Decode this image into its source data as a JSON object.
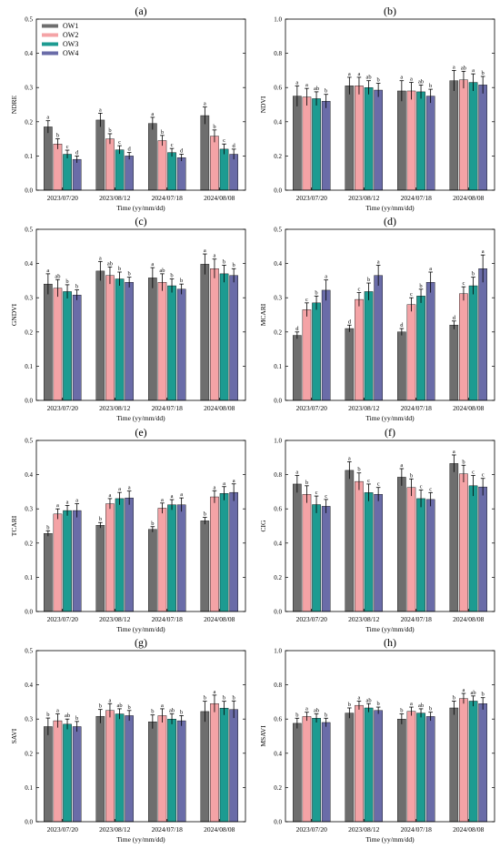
{
  "chart_data": [
    {
      "type": "bar",
      "panel_label": "(a)",
      "ylabel": "NDRE",
      "xlabel": "Time (yy/mm/dd)",
      "categories": [
        "2023/07/20",
        "2023/08/12",
        "2024/07/18",
        "2024/08/08"
      ],
      "ylim": [
        0,
        0.5
      ],
      "yticks": [
        0.0,
        0.1,
        0.2,
        0.3,
        0.4,
        0.5
      ],
      "legend": {
        "position": "top-left"
      },
      "series": [
        {
          "name": "OW1",
          "values": [
            0.185,
            0.205,
            0.195,
            0.218
          ],
          "errors": [
            0.018,
            0.02,
            0.018,
            0.025
          ],
          "labels": [
            "a",
            "a",
            "a",
            "a"
          ]
        },
        {
          "name": "OW2",
          "values": [
            0.135,
            0.15,
            0.145,
            0.158
          ],
          "errors": [
            0.015,
            0.015,
            0.015,
            0.018
          ],
          "labels": [
            "b",
            "b",
            "b",
            "b"
          ]
        },
        {
          "name": "OW3",
          "values": [
            0.105,
            0.118,
            0.11,
            0.12
          ],
          "errors": [
            0.012,
            0.012,
            0.012,
            0.015
          ],
          "labels": [
            "c",
            "c",
            "c",
            "c"
          ]
        },
        {
          "name": "OW4",
          "values": [
            0.09,
            0.1,
            0.095,
            0.105
          ],
          "errors": [
            0.01,
            0.01,
            0.01,
            0.015
          ],
          "labels": [
            "d",
            "d",
            "d",
            "d"
          ]
        }
      ]
    },
    {
      "type": "bar",
      "panel_label": "(b)",
      "ylabel": "NDVI",
      "xlabel": "Time (yy/mm/dd)",
      "categories": [
        "2023/07/20",
        "2023/08/12",
        "2024/07/18",
        "2024/08/08"
      ],
      "ylim": [
        0,
        1.0
      ],
      "yticks": [
        0.0,
        0.2,
        0.4,
        0.6,
        0.8,
        1.0
      ],
      "series": [
        {
          "name": "OW1",
          "values": [
            0.55,
            0.61,
            0.58,
            0.64
          ],
          "errors": [
            0.06,
            0.05,
            0.06,
            0.06
          ],
          "labels": [
            "a",
            "a",
            "a",
            "a"
          ]
        },
        {
          "name": "OW2",
          "values": [
            0.545,
            0.61,
            0.58,
            0.645
          ],
          "errors": [
            0.05,
            0.05,
            0.05,
            0.05
          ],
          "labels": [
            "a",
            "a",
            "a",
            "ab"
          ]
        },
        {
          "name": "OW3",
          "values": [
            0.535,
            0.6,
            0.575,
            0.63
          ],
          "errors": [
            0.04,
            0.04,
            0.04,
            0.05
          ],
          "labels": [
            "ab",
            "ab",
            "ab",
            "a"
          ]
        },
        {
          "name": "OW4",
          "values": [
            0.52,
            0.585,
            0.55,
            0.615
          ],
          "errors": [
            0.04,
            0.04,
            0.04,
            0.05
          ],
          "labels": [
            "b",
            "b",
            "b",
            "b"
          ]
        }
      ]
    },
    {
      "type": "bar",
      "panel_label": "(c)",
      "ylabel": "GNDVI",
      "xlabel": "Time (yy/mm/dd)",
      "categories": [
        "2023/07/20",
        "2023/08/12",
        "2024/07/18",
        "2024/08/08"
      ],
      "ylim": [
        0,
        0.5
      ],
      "yticks": [
        0.0,
        0.1,
        0.2,
        0.3,
        0.4,
        0.5
      ],
      "series": [
        {
          "name": "OW1",
          "values": [
            0.34,
            0.378,
            0.358,
            0.398
          ],
          "errors": [
            0.03,
            0.028,
            0.03,
            0.03
          ],
          "labels": [
            "a",
            "a",
            "a",
            "a"
          ]
        },
        {
          "name": "OW2",
          "values": [
            0.328,
            0.365,
            0.345,
            0.385
          ],
          "errors": [
            0.025,
            0.025,
            0.025,
            0.028
          ],
          "labels": [
            "ab",
            "ab",
            "ab",
            "a"
          ]
        },
        {
          "name": "OW3",
          "values": [
            0.318,
            0.355,
            0.335,
            0.37
          ],
          "errors": [
            0.02,
            0.02,
            0.02,
            0.025
          ],
          "labels": [
            "b",
            "b",
            "b",
            "b"
          ]
        },
        {
          "name": "OW4",
          "values": [
            0.308,
            0.345,
            0.325,
            0.365
          ],
          "errors": [
            0.015,
            0.015,
            0.015,
            0.02
          ],
          "labels": [
            "b",
            "b",
            "b",
            "b"
          ]
        }
      ]
    },
    {
      "type": "bar",
      "panel_label": "(d)",
      "ylabel": "MCARI",
      "xlabel": "Time (yy/mm/dd)",
      "categories": [
        "2023/07/20",
        "2023/08/12",
        "2024/07/18",
        "2024/08/08"
      ],
      "ylim": [
        0,
        0.5
      ],
      "yticks": [
        0.0,
        0.1,
        0.2,
        0.3,
        0.4,
        0.5
      ],
      "series": [
        {
          "name": "OW1",
          "values": [
            0.19,
            0.21,
            0.2,
            0.22
          ],
          "errors": [
            0.01,
            0.01,
            0.01,
            0.012
          ],
          "labels": [
            "d",
            "d",
            "d",
            "d"
          ]
        },
        {
          "name": "OW2",
          "values": [
            0.265,
            0.295,
            0.28,
            0.312
          ],
          "errors": [
            0.02,
            0.02,
            0.02,
            0.02
          ],
          "labels": [
            "c",
            "c",
            "c",
            "c"
          ]
        },
        {
          "name": "OW3",
          "values": [
            0.285,
            0.318,
            0.305,
            0.335
          ],
          "errors": [
            0.02,
            0.025,
            0.02,
            0.025
          ],
          "labels": [
            "b",
            "b",
            "b",
            "b"
          ]
        },
        {
          "name": "OW4",
          "values": [
            0.322,
            0.365,
            0.345,
            0.385
          ],
          "errors": [
            0.03,
            0.03,
            0.03,
            0.04
          ],
          "labels": [
            "a",
            "a",
            "a",
            "a"
          ]
        }
      ]
    },
    {
      "type": "bar",
      "panel_label": "(e)",
      "ylabel": "TCARI",
      "xlabel": "Time (yy/mm/dd)",
      "categories": [
        "2023/07/20",
        "2023/08/12",
        "2024/07/18",
        "2024/08/08"
      ],
      "ylim": [
        0,
        0.5
      ],
      "yticks": [
        0.0,
        0.1,
        0.2,
        0.3,
        0.4,
        0.5
      ],
      "series": [
        {
          "name": "OW1",
          "values": [
            0.228,
            0.252,
            0.24,
            0.265
          ],
          "errors": [
            0.008,
            0.008,
            0.008,
            0.01
          ],
          "labels": [
            "b",
            "b",
            "b",
            "b"
          ]
        },
        {
          "name": "OW2",
          "values": [
            0.285,
            0.315,
            0.302,
            0.335
          ],
          "errors": [
            0.015,
            0.015,
            0.015,
            0.018
          ],
          "labels": [
            "a",
            "a",
            "a",
            "a"
          ]
        },
        {
          "name": "OW3",
          "values": [
            0.295,
            0.33,
            0.312,
            0.345
          ],
          "errors": [
            0.015,
            0.018,
            0.015,
            0.02
          ],
          "labels": [
            "a",
            "a",
            "a",
            "a"
          ]
        },
        {
          "name": "OW4",
          "values": [
            0.295,
            0.332,
            0.312,
            0.348
          ],
          "errors": [
            0.02,
            0.02,
            0.02,
            0.025
          ],
          "labels": [
            "a",
            "a",
            "a",
            "a"
          ]
        }
      ]
    },
    {
      "type": "bar",
      "panel_label": "(f)",
      "ylabel": "CIG",
      "xlabel": "Time (yy/mm/dd)",
      "categories": [
        "2023/07/20",
        "2023/08/12",
        "2024/07/18",
        "2024/08/08"
      ],
      "ylim": [
        0,
        1.0
      ],
      "yticks": [
        0.0,
        0.2,
        0.4,
        0.6,
        0.8,
        1.0
      ],
      "series": [
        {
          "name": "OW1",
          "values": [
            0.745,
            0.825,
            0.785,
            0.865
          ],
          "errors": [
            0.05,
            0.05,
            0.05,
            0.05
          ],
          "labels": [
            "a",
            "a",
            "a",
            "a"
          ]
        },
        {
          "name": "OW2",
          "values": [
            0.685,
            0.76,
            0.725,
            0.805
          ],
          "errors": [
            0.05,
            0.05,
            0.05,
            0.05
          ],
          "labels": [
            "b",
            "b",
            "b",
            "b"
          ]
        },
        {
          "name": "OW3",
          "values": [
            0.625,
            0.695,
            0.66,
            0.735
          ],
          "errors": [
            0.05,
            0.05,
            0.05,
            0.06
          ],
          "labels": [
            "c",
            "c",
            "c",
            "c"
          ]
        },
        {
          "name": "OW4",
          "values": [
            0.615,
            0.685,
            0.655,
            0.728
          ],
          "errors": [
            0.04,
            0.04,
            0.04,
            0.05
          ],
          "labels": [
            "c",
            "c",
            "c",
            "c"
          ]
        }
      ]
    },
    {
      "type": "bar",
      "panel_label": "(g)",
      "ylabel": "SAVI",
      "xlabel": "Time (yy/mm/dd)",
      "categories": [
        "2023/07/20",
        "2023/08/12",
        "2024/07/18",
        "2024/08/08"
      ],
      "ylim": [
        0,
        0.5
      ],
      "yticks": [
        0.0,
        0.1,
        0.2,
        0.3,
        0.4,
        0.5
      ],
      "series": [
        {
          "name": "OW1",
          "values": [
            0.278,
            0.308,
            0.292,
            0.322
          ],
          "errors": [
            0.025,
            0.02,
            0.02,
            0.03
          ],
          "labels": [
            "b",
            "b",
            "b",
            "b"
          ]
        },
        {
          "name": "OW2",
          "values": [
            0.295,
            0.325,
            0.31,
            0.345
          ],
          "errors": [
            0.02,
            0.02,
            0.02,
            0.025
          ],
          "labels": [
            "a",
            "a",
            "a",
            "a"
          ]
        },
        {
          "name": "OW3",
          "values": [
            0.285,
            0.315,
            0.3,
            0.332
          ],
          "errors": [
            0.015,
            0.015,
            0.015,
            0.02
          ],
          "labels": [
            "ab",
            "ab",
            "ab",
            "b"
          ]
        },
        {
          "name": "OW4",
          "values": [
            0.278,
            0.31,
            0.295,
            0.328
          ],
          "errors": [
            0.015,
            0.015,
            0.015,
            0.025
          ],
          "labels": [
            "b",
            "b",
            "b",
            "b"
          ]
        }
      ]
    },
    {
      "type": "bar",
      "panel_label": "(h)",
      "ylabel": "MSAVI",
      "xlabel": "Time (yy/mm/dd)",
      "categories": [
        "2023/07/20",
        "2023/08/12",
        "2024/07/18",
        "2024/08/08"
      ],
      "ylim": [
        0,
        1.0
      ],
      "yticks": [
        0.0,
        0.2,
        0.4,
        0.6,
        0.8,
        1.0
      ],
      "series": [
        {
          "name": "OW1",
          "values": [
            0.575,
            0.635,
            0.6,
            0.665
          ],
          "errors": [
            0.03,
            0.03,
            0.03,
            0.04
          ],
          "labels": [
            "b",
            "b",
            "b",
            "b"
          ]
        },
        {
          "name": "OW2",
          "values": [
            0.615,
            0.68,
            0.645,
            0.72
          ],
          "errors": [
            0.025,
            0.025,
            0.025,
            0.03
          ],
          "labels": [
            "a",
            "a",
            "a",
            "a"
          ]
        },
        {
          "name": "OW3",
          "values": [
            0.605,
            0.665,
            0.635,
            0.705
          ],
          "errors": [
            0.025,
            0.025,
            0.025,
            0.03
          ],
          "labels": [
            "ab",
            "ab",
            "ab",
            "ab"
          ]
        },
        {
          "name": "OW4",
          "values": [
            0.58,
            0.65,
            0.615,
            0.69
          ],
          "errors": [
            0.025,
            0.02,
            0.025,
            0.035
          ],
          "labels": [
            "b",
            "b",
            "b",
            "b"
          ]
        }
      ]
    }
  ],
  "colors": {
    "OW1": "#6e6e6e",
    "OW2": "#f4a3a6",
    "OW3": "#1d9b91",
    "OW4": "#6a6ca8"
  }
}
